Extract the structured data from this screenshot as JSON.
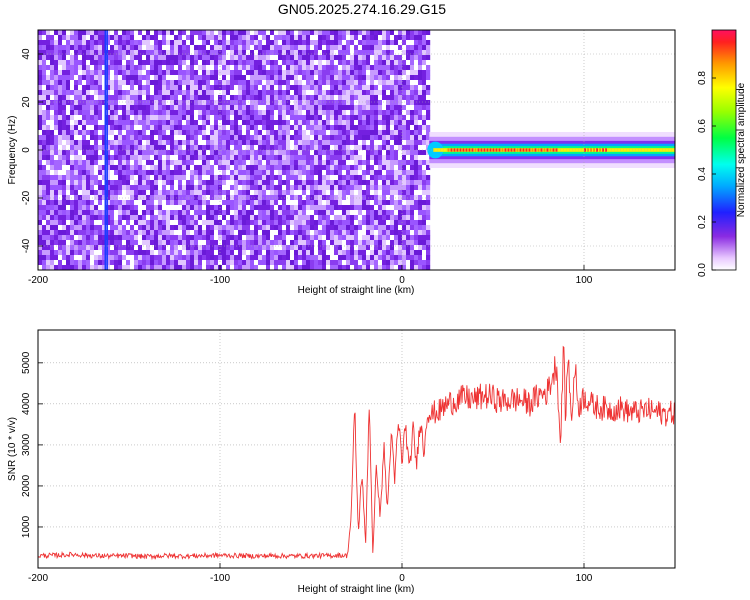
{
  "title": "GN05.2025.274.16.29.G15",
  "chart_data": [
    {
      "type": "heatmap",
      "xlabel": "Height of straight line (km)",
      "ylabel": "Frequency (Hz)",
      "xlim": [
        -200,
        150
      ],
      "ylim": [
        -50,
        50
      ],
      "x_ticks": [
        -200,
        -100,
        0,
        100
      ],
      "y_ticks": [
        -40,
        -20,
        0,
        20,
        40
      ],
      "noise_region_x": [
        -200,
        15
      ],
      "signal_band": {
        "x_start": 15,
        "x_end": 150,
        "freq_center": 0,
        "freq_halfwidth": 3
      },
      "peak_segments": [
        [
          25,
          85
        ],
        [
          100,
          112
        ]
      ],
      "vertical_lines_x": [
        -163,
        -162
      ],
      "colorbar": {
        "label": "Normalized spectral amplitude",
        "range": [
          0,
          1
        ],
        "ticks": [
          0.0,
          0.2,
          0.4,
          0.6,
          0.8
        ]
      },
      "grid": true
    },
    {
      "type": "line",
      "xlabel": "Height of straight line (km)",
      "ylabel": "SNR (10 * v/v)",
      "xlim": [
        -200,
        150
      ],
      "ylim": [
        0,
        5800
      ],
      "x_ticks": [
        -200,
        -100,
        0,
        100
      ],
      "y_ticks": [
        1000,
        2000,
        3000,
        4000,
        5000
      ],
      "color": "#ee3333",
      "grid": true,
      "series": [
        {
          "x": [
            -200,
            -190,
            -180,
            -170,
            -160,
            -150,
            -140,
            -130,
            -120,
            -110,
            -100,
            -90,
            -80,
            -70,
            -60,
            -50,
            -40,
            -35,
            -30,
            -28,
            -26,
            -24,
            -22,
            -20,
            -18,
            -16,
            -14,
            -12,
            -10,
            -8,
            -6,
            -4,
            -2,
            0,
            2,
            4,
            6,
            8,
            10,
            12,
            14,
            16,
            18,
            20,
            25,
            30,
            35,
            40,
            45,
            50,
            55,
            60,
            65,
            70,
            75,
            80,
            85,
            87,
            89,
            90,
            91,
            93,
            95,
            97,
            100,
            105,
            110,
            115,
            120,
            125,
            130,
            135,
            140,
            145,
            150
          ],
          "y": [
            300,
            310,
            330,
            300,
            290,
            300,
            280,
            300,
            290,
            300,
            310,
            300,
            290,
            300,
            290,
            300,
            300,
            310,
            300,
            1200,
            3900,
            800,
            2400,
            500,
            4100,
            300,
            2600,
            1200,
            3000,
            1400,
            3300,
            2100,
            3600,
            2600,
            3500,
            2300,
            3400,
            2500,
            3700,
            2800,
            3900,
            3700,
            3800,
            3800,
            4000,
            4100,
            4150,
            4100,
            4200,
            4150,
            4050,
            4100,
            4100,
            4000,
            4200,
            4300,
            5000,
            3000,
            5600,
            3200,
            5400,
            3600,
            4900,
            3900,
            4200,
            3950,
            3900,
            3850,
            3900,
            3800,
            3800,
            3850,
            3800,
            3750,
            3800
          ]
        }
      ]
    }
  ]
}
